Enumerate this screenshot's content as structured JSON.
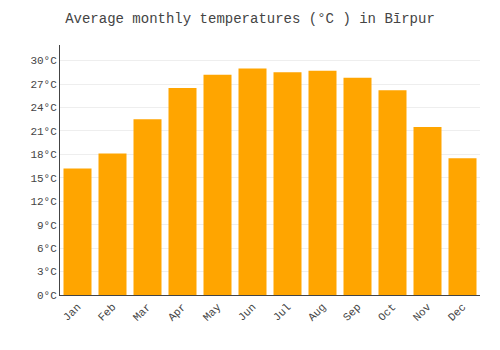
{
  "chart_data": {
    "type": "bar",
    "title": "Average monthly temperatures (°C ) in Bīrpur",
    "categories": [
      "Jan",
      "Feb",
      "Mar",
      "Apr",
      "May",
      "Jun",
      "Jul",
      "Aug",
      "Sep",
      "Oct",
      "Nov",
      "Dec"
    ],
    "values": [
      16.2,
      18.1,
      22.5,
      26.5,
      28.2,
      29.0,
      28.5,
      28.7,
      27.8,
      26.2,
      21.5,
      17.5
    ],
    "color": "#FFA500",
    "ylim": [
      0,
      32
    ],
    "yticks": [
      {
        "value": 0,
        "label": "0°C"
      },
      {
        "value": 3,
        "label": "3°C"
      },
      {
        "value": 6,
        "label": "6°C"
      },
      {
        "value": 9,
        "label": "9°C"
      },
      {
        "value": 12,
        "label": "12°C"
      },
      {
        "value": 15,
        "label": "15°C"
      },
      {
        "value": 18,
        "label": "18°C"
      },
      {
        "value": 21,
        "label": "21°C"
      },
      {
        "value": 24,
        "label": "24°C"
      },
      {
        "value": 27,
        "label": "27°C"
      },
      {
        "value": 30,
        "label": "30°C"
      }
    ],
    "grid": true
  }
}
